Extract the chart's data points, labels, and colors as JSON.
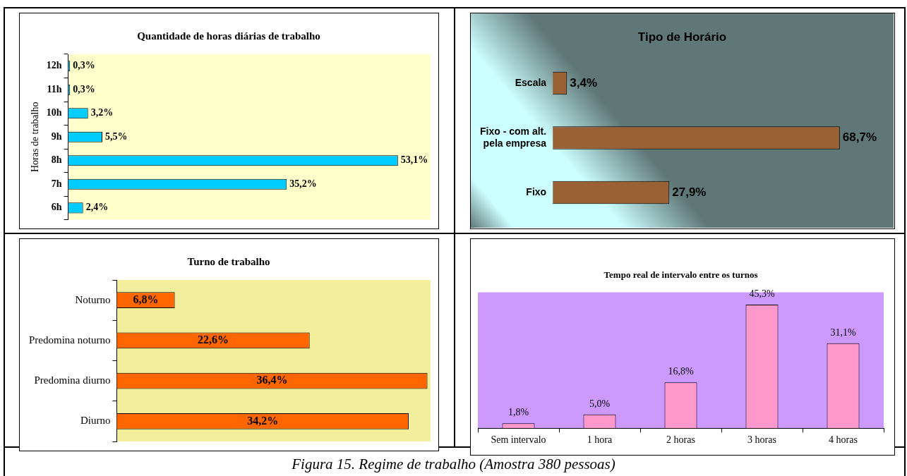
{
  "chart_data": [
    {
      "type": "bar",
      "title": "Quantidade de horas diárias de trabalho",
      "ylabel": "Horas de trabalho",
      "orientation": "horizontal",
      "categories": [
        "12h",
        "11h",
        "10h",
        "9h",
        "8h",
        "7h",
        "6h"
      ],
      "values": [
        0.3,
        0.3,
        3.2,
        5.5,
        53.1,
        35.2,
        2.4
      ],
      "color": "#00ccff",
      "value_labels": [
        "0,3%",
        "0,3%",
        "3,2%",
        "5,5%",
        "53,1%",
        "35,2%",
        "2,4%"
      ]
    },
    {
      "type": "bar",
      "title": "Tipo de Horário",
      "orientation": "horizontal",
      "categories": [
        "Escala",
        "Fixo - com alt. pela empresa",
        "Fixo"
      ],
      "values": [
        3.4,
        68.7,
        27.9
      ],
      "color": "#9a6234",
      "value_labels": [
        "3,4%",
        "68,7%",
        "27,9%"
      ]
    },
    {
      "type": "bar",
      "title": "Turno de trabalho",
      "orientation": "horizontal",
      "categories": [
        "Noturno",
        "Predomina noturno",
        "Predomina diurno",
        "Diurno"
      ],
      "values": [
        6.8,
        22.6,
        36.4,
        34.2
      ],
      "color": "#ff6600",
      "value_labels": [
        "6,8%",
        "22,6%",
        "36,4%",
        "34,2%"
      ]
    },
    {
      "type": "bar",
      "title": "Tempo real de intervalo entre os turnos",
      "categories": [
        "Sem intervalo",
        "1 hora",
        "2 horas",
        "3 horas",
        "4 horas"
      ],
      "values": [
        1.8,
        5.0,
        16.8,
        45.3,
        31.1
      ],
      "color": "#ff99cc",
      "value_labels": [
        "1,8%",
        "5,0%",
        "16,8%",
        "45,3%",
        "31,1%"
      ]
    },
    {
      "type": "other",
      "annotations": [
        "Figura 15. Regime de trabalho (Amostra 380 pessoas)"
      ]
    }
  ]
}
